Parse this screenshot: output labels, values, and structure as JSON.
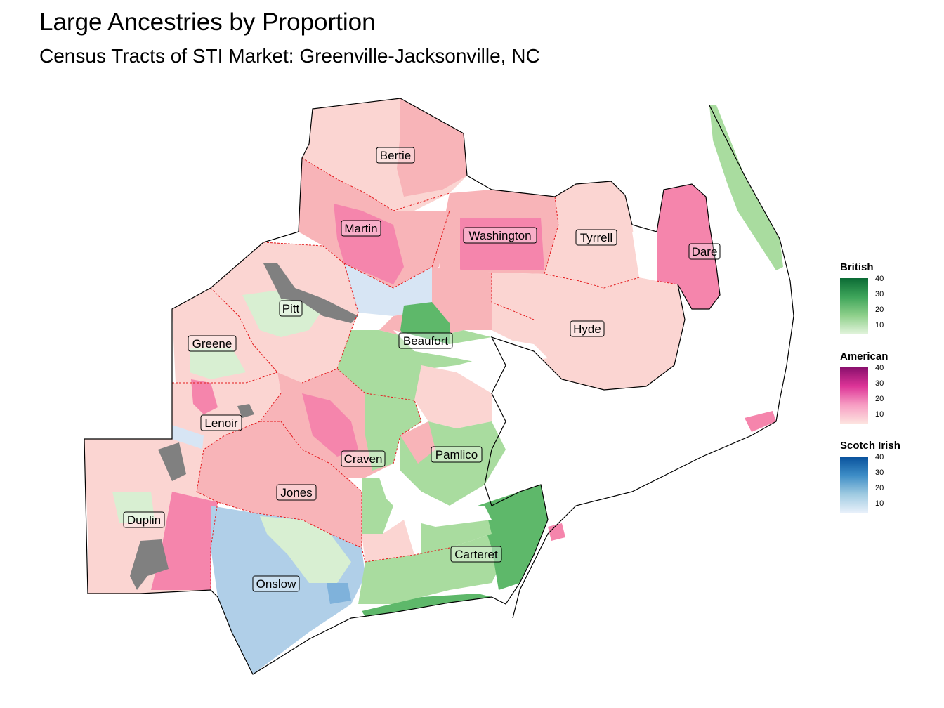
{
  "title": "Large Ancestries by Proportion",
  "subtitle": "Census Tracts of STI Market: Greenville-Jacksonville, NC",
  "counties": [
    {
      "name": "Bertie"
    },
    {
      "name": "Martin"
    },
    {
      "name": "Washington"
    },
    {
      "name": "Tyrrell"
    },
    {
      "name": "Dare"
    },
    {
      "name": "Pitt"
    },
    {
      "name": "Greene"
    },
    {
      "name": "Beaufort"
    },
    {
      "name": "Hyde"
    },
    {
      "name": "Lenoir"
    },
    {
      "name": "Craven"
    },
    {
      "name": "Pamlico"
    },
    {
      "name": "Jones"
    },
    {
      "name": "Duplin"
    },
    {
      "name": "Carteret"
    },
    {
      "name": "Onslow"
    }
  ],
  "legends": [
    {
      "title": "British",
      "ticks": [
        "40",
        "30",
        "20",
        "10"
      ],
      "colors": [
        "#0b6b35",
        "#3ea55a",
        "#8fd08b",
        "#e3f4dd"
      ]
    },
    {
      "title": "American",
      "ticks": [
        "40",
        "30",
        "20",
        "10"
      ],
      "colors": [
        "#8a0f6d",
        "#dd3497",
        "#f79dc3",
        "#fde3df"
      ]
    },
    {
      "title": "Scotch Irish",
      "ticks": [
        "40",
        "30",
        "20",
        "10"
      ],
      "colors": [
        "#08519c",
        "#3d8dc6",
        "#9ecae1",
        "#e8f0fa"
      ]
    }
  ],
  "colors": {
    "pink_light": "#fbd5d2",
    "pink_mid": "#f8b4b8",
    "pink_strong": "#f585ac",
    "green_light": "#d8efd2",
    "green_mid": "#a9dc9f",
    "green_strong": "#5eb86a",
    "blue_light": "#d7e5f4",
    "blue_mid": "#b0cfe8",
    "blue_strong": "#7fb2db",
    "no_data": "#808080",
    "county_border": "#e31a1c"
  }
}
